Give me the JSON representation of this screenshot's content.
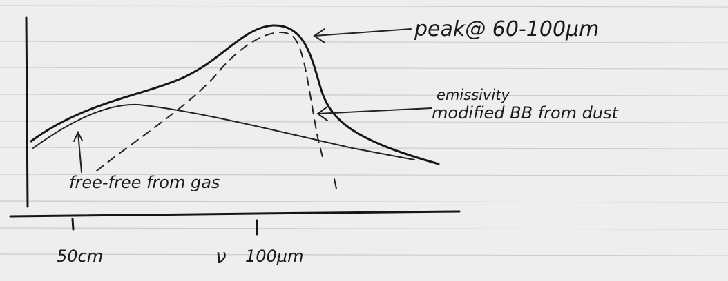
{
  "annotations": {
    "peak": "peak@ 60-100μm",
    "dust": [
      "emissivity",
      "modified BB from dust"
    ],
    "gas": "free-free from gas"
  },
  "axis": {
    "x_label": "ν",
    "ticks": [
      "50cm",
      "100μm"
    ]
  }
}
